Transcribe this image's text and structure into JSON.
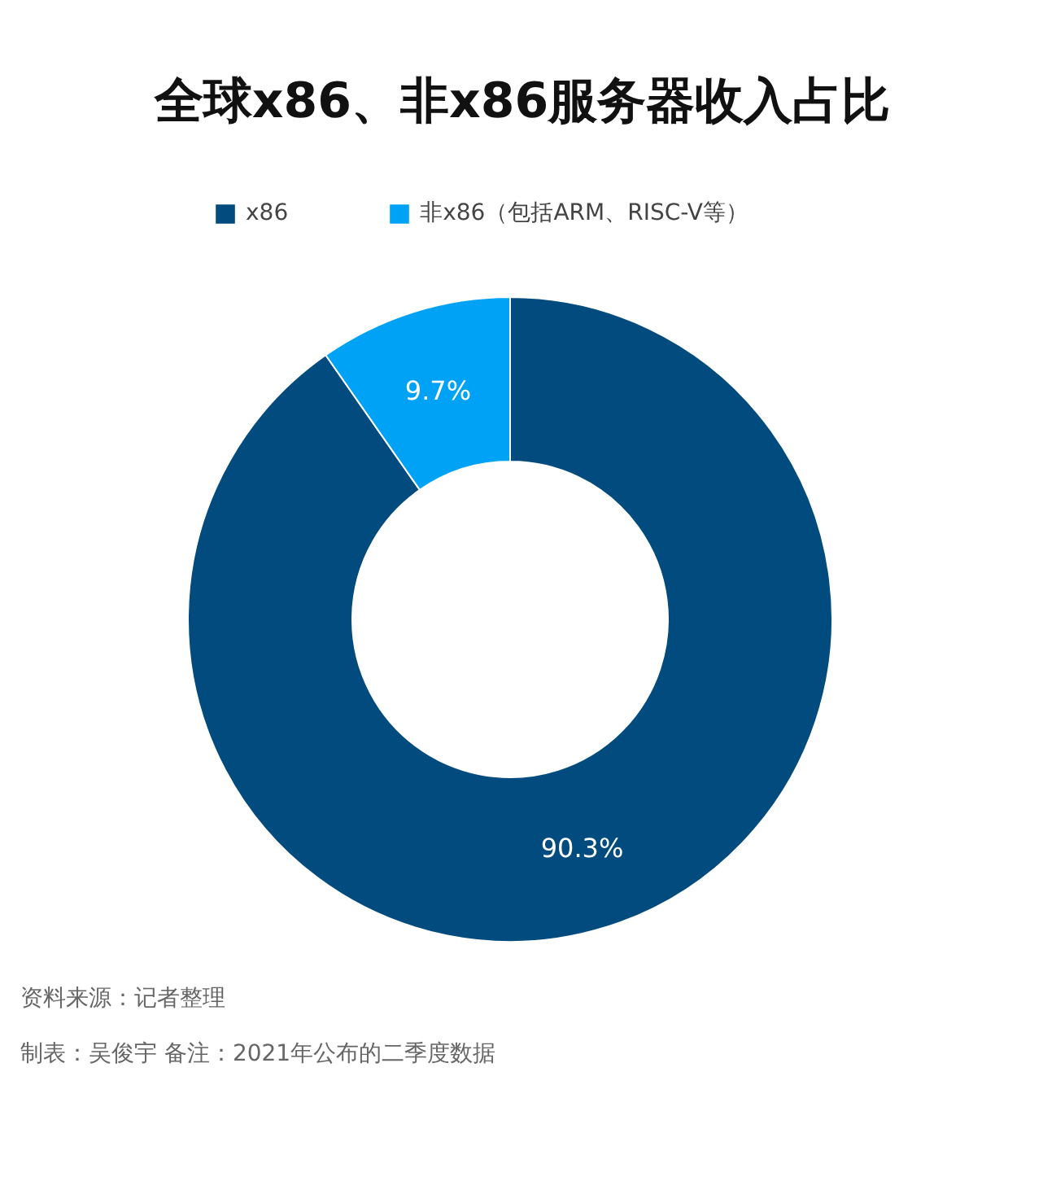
{
  "chart_data": {
    "type": "donut",
    "title": "全球x86、非x86服务器收入占比",
    "categories": [
      "x86",
      "非x86（包括ARM、RISC-V等）"
    ],
    "values": [
      90.3,
      9.7
    ],
    "colors": [
      "#024b7e",
      "#00a2f5"
    ],
    "value_labels": [
      "90.3%",
      "9.7%"
    ],
    "legend": "top",
    "annotations": [
      "资料来源：记者整理",
      "制表：吴俊宇     备注：2021年公布的二季度数据"
    ]
  }
}
